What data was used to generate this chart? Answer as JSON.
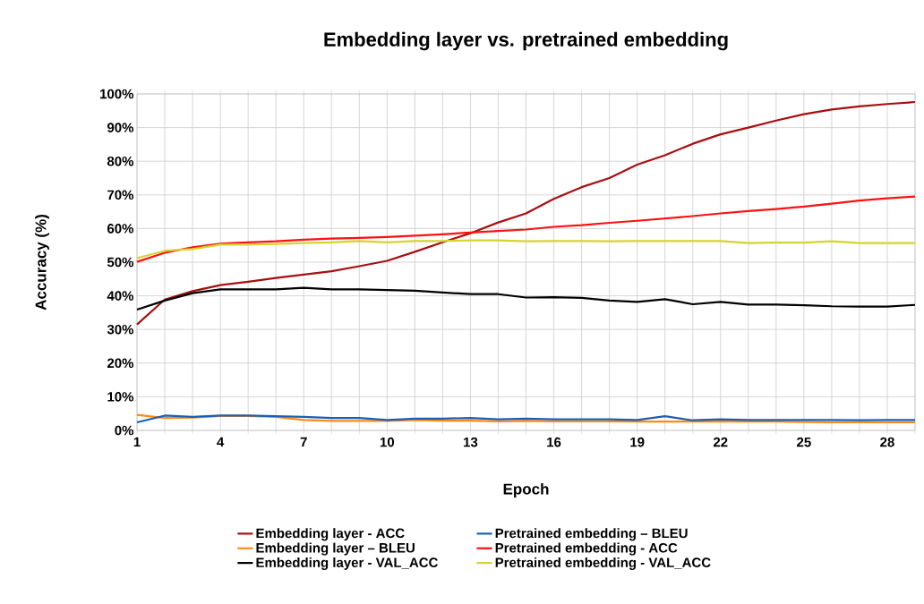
{
  "chart_data": {
    "type": "line",
    "title": "Embedding layer vs. pretrained embedding",
    "xlabel": "Epoch",
    "ylabel": "Accuracy (%)",
    "categories": [
      "1",
      null,
      null,
      "4",
      null,
      null,
      "7",
      null,
      null,
      "10",
      null,
      null,
      "13",
      null,
      null,
      "16",
      null,
      null,
      "19",
      null,
      null,
      "22",
      null,
      null,
      "25",
      null,
      null,
      "28",
      null
    ],
    "ylim": [
      0,
      100
    ],
    "yticks": [
      {
        "value": 0,
        "label": "0%"
      },
      {
        "value": 10,
        "label": "10%"
      },
      {
        "value": 20,
        "label": "20%"
      },
      {
        "value": 30,
        "label": "30%"
      },
      {
        "value": 40,
        "label": "40%"
      },
      {
        "value": 50,
        "label": "50%"
      },
      {
        "value": 60,
        "label": "60%"
      },
      {
        "value": 70,
        "label": "70%"
      },
      {
        "value": 80,
        "label": "80%"
      },
      {
        "value": 90,
        "label": "90%"
      },
      {
        "value": 100,
        "label": "100%"
      }
    ],
    "grid": true,
    "legend": "bottom",
    "marker": "none",
    "line_style": "solid",
    "series": [
      {
        "name": "Embedding layer - ACC",
        "color": "#a80f0f",
        "values": [
          31.5,
          38.9,
          41.4,
          43.2,
          44.2,
          45.3,
          46.3,
          47.3,
          48.8,
          50.4,
          53.1,
          55.9,
          58.6,
          61.8,
          64.5,
          68.8,
          72.3,
          75,
          79,
          81.8,
          85.2,
          88,
          90,
          92.1,
          94,
          95.4,
          96.3,
          97,
          97.6
        ]
      },
      {
        "name": "Embedding layer – BLEU",
        "color": "#ff8a14",
        "values": [
          4.6,
          3.7,
          3.8,
          4.3,
          4.3,
          4,
          3.1,
          2.8,
          2.8,
          2.8,
          3.1,
          2.9,
          2.9,
          2.7,
          2.8,
          2.7,
          2.7,
          2.7,
          2.6,
          2.6,
          2.6,
          2.6,
          2.6,
          2.6,
          2.5,
          2.4,
          2.4,
          2.4,
          2.4
        ]
      },
      {
        "name": "Embedding layer - VAL_ACC",
        "color": "#000000",
        "values": [
          35.9,
          38.6,
          40.8,
          41.9,
          41.9,
          41.9,
          42.4,
          41.9,
          41.9,
          41.7,
          41.5,
          41,
          40.5,
          40.5,
          39.5,
          39.6,
          39.4,
          38.6,
          38.2,
          39,
          37.5,
          38.2,
          37.4,
          37.4,
          37.2,
          36.9,
          36.8,
          36.8,
          37.3
        ]
      },
      {
        "name": "Pretrained embedding – BLEU",
        "color": "#1a5fb4",
        "values": [
          2.4,
          4.4,
          4,
          4.4,
          4.4,
          4.2,
          4,
          3.7,
          3.7,
          3.1,
          3.5,
          3.5,
          3.7,
          3.3,
          3.5,
          3.3,
          3.3,
          3.3,
          3.1,
          4.2,
          3,
          3.3,
          3.1,
          3.1,
          3.1,
          3.1,
          3,
          3.1,
          3.1
        ]
      },
      {
        "name": "Pretrained embedding - ACC",
        "color": "#ff1010",
        "values": [
          50.1,
          52.8,
          54.4,
          55.5,
          55.9,
          56.2,
          56.7,
          57,
          57.2,
          57.5,
          57.9,
          58.3,
          58.8,
          59.3,
          59.7,
          60.5,
          61,
          61.7,
          62.3,
          63,
          63.7,
          64.5,
          65.2,
          65.8,
          66.5,
          67.4,
          68.3,
          69,
          69.5
        ]
      },
      {
        "name": "Pretrained embedding - VAL_ACC",
        "color": "#d4d430",
        "values": [
          51.2,
          53.4,
          53.9,
          55.2,
          55.2,
          55.4,
          55.7,
          55.9,
          56.3,
          55.9,
          56.3,
          56.3,
          56.5,
          56.5,
          56.2,
          56.3,
          56.3,
          56.2,
          56.3,
          56.3,
          56.3,
          56.3,
          55.7,
          55.8,
          55.8,
          56.2,
          55.7,
          55.7,
          55.7
        ]
      }
    ]
  }
}
